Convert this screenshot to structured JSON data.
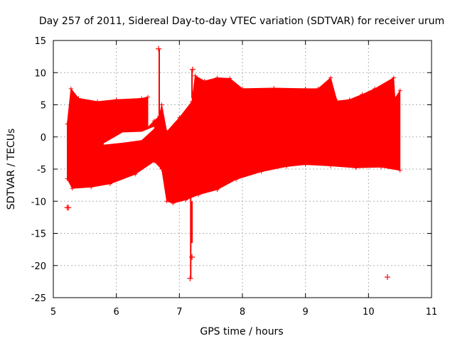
{
  "chart_data": {
    "type": "scatter",
    "title": "Day 257 of 2011, Sidereal Day-to-day VTEC variation (SDTVAR) for receiver urum",
    "xlabel": "GPS time / hours",
    "ylabel": "SDTVAR / TECUs",
    "xlim": [
      5,
      11
    ],
    "ylim": [
      -25,
      15
    ],
    "xticks": [
      5,
      6,
      7,
      8,
      9,
      10,
      11
    ],
    "yticks": [
      -25,
      -20,
      -15,
      -10,
      -5,
      0,
      5,
      10,
      15
    ],
    "grid": true,
    "marker": "+",
    "color": "#ff0000",
    "envelope": {
      "upper": [
        [
          5.22,
          2.0
        ],
        [
          5.28,
          7.5
        ],
        [
          5.4,
          6.0
        ],
        [
          5.7,
          5.5
        ],
        [
          6.0,
          5.8
        ],
        [
          6.4,
          6.0
        ],
        [
          6.5,
          6.2
        ],
        [
          6.5,
          1.5
        ],
        [
          6.6,
          2.5
        ],
        [
          6.68,
          3.2
        ],
        [
          6.72,
          5.0
        ],
        [
          6.8,
          0.8
        ],
        [
          7.0,
          3.0
        ],
        [
          7.2,
          5.5
        ],
        [
          7.25,
          9.5
        ],
        [
          7.4,
          8.7
        ],
        [
          7.6,
          9.2
        ],
        [
          7.8,
          9.1
        ],
        [
          8.0,
          7.5
        ],
        [
          8.5,
          7.6
        ],
        [
          9.0,
          7.5
        ],
        [
          9.2,
          7.5
        ],
        [
          9.4,
          9.2
        ],
        [
          9.5,
          5.6
        ],
        [
          9.7,
          5.8
        ],
        [
          9.9,
          6.6
        ],
        [
          10.1,
          7.5
        ],
        [
          10.4,
          9.2
        ],
        [
          10.42,
          6.0
        ],
        [
          10.5,
          7.2
        ]
      ],
      "lower": [
        [
          5.22,
          -6.5
        ],
        [
          5.3,
          -8.0
        ],
        [
          5.6,
          -7.8
        ],
        [
          5.9,
          -7.3
        ],
        [
          6.3,
          -5.8
        ],
        [
          6.6,
          -3.8
        ],
        [
          6.72,
          -5.0
        ],
        [
          6.8,
          -10.0
        ],
        [
          6.9,
          -10.3
        ],
        [
          7.1,
          -9.8
        ],
        [
          7.3,
          -9.0
        ],
        [
          7.6,
          -8.2
        ],
        [
          7.9,
          -6.6
        ],
        [
          8.3,
          -5.4
        ],
        [
          8.7,
          -4.6
        ],
        [
          9.0,
          -4.3
        ],
        [
          9.4,
          -4.5
        ],
        [
          9.8,
          -4.8
        ],
        [
          10.2,
          -4.7
        ],
        [
          10.5,
          -5.2
        ]
      ],
      "hole_upper": [
        [
          5.8,
          -1.0
        ],
        [
          6.1,
          0.7
        ],
        [
          6.4,
          0.8
        ],
        [
          6.6,
          1.6
        ]
      ],
      "hole_lower": [
        [
          5.8,
          -1.2
        ],
        [
          6.1,
          -0.9
        ],
        [
          6.4,
          -0.5
        ],
        [
          6.6,
          1.3
        ]
      ]
    },
    "spikes": [
      {
        "x": 6.68,
        "from": 3.0,
        "to": 13.7
      },
      {
        "x": 6.7,
        "from": -5.0,
        "to": -3.5
      },
      {
        "x": 7.18,
        "from": -22.0,
        "to": -9.5
      },
      {
        "x": 7.2,
        "from": -16.5,
        "to": -10.0
      },
      {
        "x": 7.2,
        "from": 6.0,
        "to": 10.5
      }
    ],
    "points": [
      {
        "x": 5.22,
        "y": -11.0
      },
      {
        "x": 5.24,
        "y": -11.0
      },
      {
        "x": 6.67,
        "y": 13.7
      },
      {
        "x": 7.17,
        "y": -22.0
      },
      {
        "x": 7.2,
        "y": -18.7
      },
      {
        "x": 7.21,
        "y": 10.5
      },
      {
        "x": 10.3,
        "y": -21.8
      }
    ]
  }
}
